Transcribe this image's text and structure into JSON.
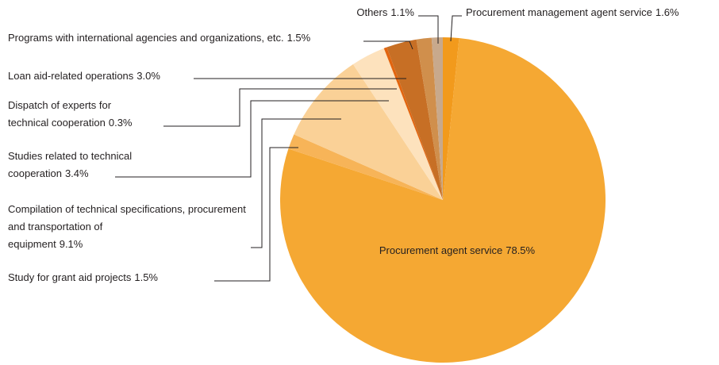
{
  "chart_data": {
    "type": "pie",
    "categories": [
      "Procurement management agent service",
      "Procurement agent service",
      "Study for grant aid projects",
      "Compilation of technical specifications, procurement and transportation of equipment",
      "Studies related to technical cooperation",
      "Dispatch of experts for technical cooperation",
      "Loan aid-related operations",
      "Programs with international agencies and organizations, etc.",
      "Others"
    ],
    "values": [
      1.6,
      78.5,
      1.5,
      9.1,
      3.4,
      0.3,
      3.0,
      1.5,
      1.1
    ],
    "value_labels": [
      "1.6%",
      "78.5%",
      "1.5%",
      "9.1%",
      "3.4%",
      "0.3%",
      "3.0%",
      "1.5%",
      "1.1%"
    ],
    "colors": [
      "#f29a1c",
      "#f5a833",
      "#f7b458",
      "#fad197",
      "#fde2bd",
      "#e2650f",
      "#c76f25",
      "#d08f4c",
      "#c8a98c"
    ]
  }
}
